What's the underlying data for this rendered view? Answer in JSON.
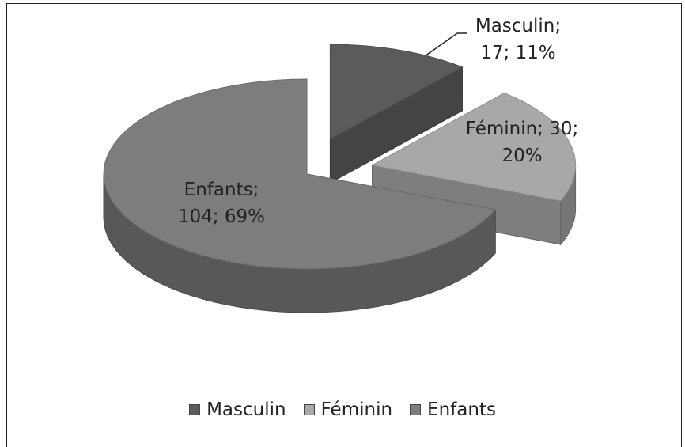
{
  "chart_data": {
    "type": "pie3d",
    "categories": [
      "Masculin",
      "Féminin",
      "Enfants"
    ],
    "values": [
      17,
      30,
      104
    ],
    "value_labels": [
      "Masculin; 17; 11%",
      "Féminin; 30; 20%",
      "Enfants; 104; 69%"
    ],
    "colors": [
      "#5b5b5b",
      "#a8a8a8",
      "#7d7d7d"
    ],
    "legend": "bottom"
  }
}
